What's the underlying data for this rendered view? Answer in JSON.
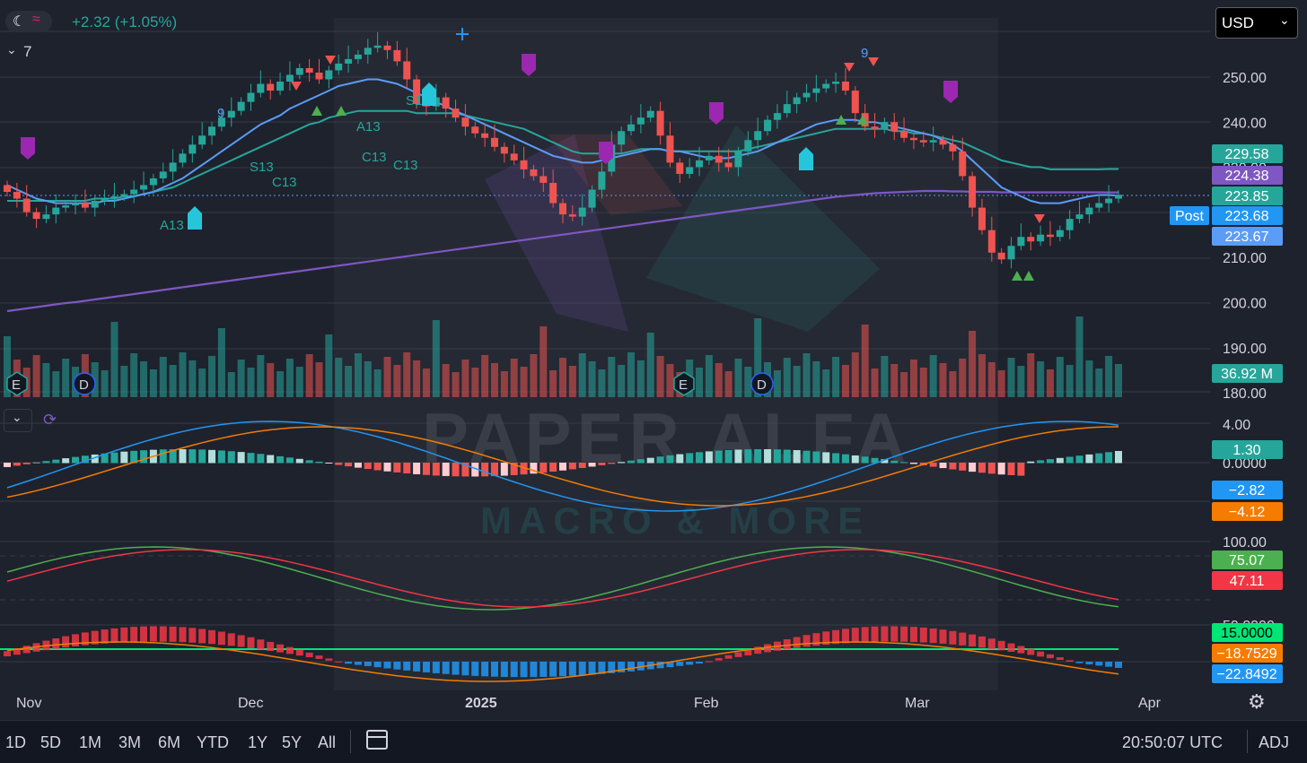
{
  "header": {
    "change_text": "+2.32 (+1.05%)",
    "collapse_count": "7"
  },
  "currency": {
    "selected": "USD"
  },
  "watermark": {
    "line1": "PAPER ALFA",
    "line2": "MACRO & MORE"
  },
  "colors": {
    "background": "#1e222d",
    "up": "#26a69a",
    "down": "#ef5350",
    "ma_fast": "#5b9cf6",
    "ma_slow": "#26a69a",
    "ma_200": "#7e57c2",
    "macd": "#2196f3",
    "signal": "#f57c00",
    "stoch_k": "#4caf50",
    "stoch_d": "#f23645"
  },
  "chart_data": [
    {
      "type": "candlestick",
      "x_ticks": [
        "Nov",
        "Dec",
        "2025",
        "Feb",
        "Mar",
        "Apr"
      ],
      "y_ticks": [
        "250.00",
        "240.00",
        "230.00",
        "220.00",
        "210.00",
        "200.00",
        "190.00",
        "180.00"
      ],
      "ylim": [
        178,
        258
      ],
      "price_badges": [
        {
          "label": "229.58",
          "color": "#26a69a"
        },
        {
          "label": "224.38",
          "color": "#7e57c2"
        },
        {
          "label": "223.85",
          "color": "#26a69a"
        },
        {
          "label": "223.68",
          "color": "#2196f3",
          "tag": "Post"
        },
        {
          "label": "223.67",
          "color": "#5b9cf6"
        }
      ],
      "volume_badge": "36.92 M",
      "event_markers": [
        "E",
        "D",
        "E",
        "D"
      ],
      "sequence_labels": [
        "9",
        "9",
        "A13",
        "S13",
        "C13",
        "C13",
        "C13",
        "S13",
        "A13"
      ],
      "close": [
        224.5,
        223.0,
        220.0,
        218.5,
        219.5,
        221.0,
        221.5,
        222.0,
        221.0,
        222.5,
        223.0,
        223.5,
        224.0,
        225.0,
        226.0,
        227.5,
        229.0,
        231.0,
        233.0,
        235.0,
        237.0,
        239.0,
        241.0,
        242.5,
        244.5,
        246.5,
        248.5,
        247.0,
        249.0,
        250.5,
        252.0,
        251.0,
        249.5,
        251.5,
        253.0,
        254.0,
        255.0,
        256.5,
        257.0,
        256.0,
        253.5,
        249.5,
        244.0,
        243.5,
        245.5,
        243.0,
        241.0,
        239.0,
        237.5,
        236.5,
        234.5,
        233.0,
        231.5,
        229.5,
        228.0,
        226.5,
        222.0,
        219.5,
        219.0,
        221.0,
        225.0,
        229.0,
        235.0,
        238.0,
        239.5,
        241.0,
        242.5,
        237.0,
        231.0,
        228.5,
        230.0,
        231.5,
        232.5,
        231.0,
        230.0,
        233.5,
        236.0,
        238.0,
        240.5,
        242.0,
        244.0,
        245.5,
        246.5,
        247.5,
        248.5,
        249.0,
        247.0,
        242.0,
        239.0,
        238.5,
        240.0,
        238.0,
        236.5,
        236.0,
        235.5,
        236.0,
        235.0,
        233.5,
        228.0,
        221.0,
        216.0,
        211.0,
        209.5,
        212.5,
        214.5,
        213.5,
        215.0,
        214.5,
        216.0,
        218.5,
        219.5,
        221.0,
        222.0,
        223.0,
        223.85
      ],
      "ma_fast": [
        226.0,
        225.0,
        224.0,
        223.0,
        222.5,
        222.0,
        222.0,
        222.0,
        222.0,
        222.0,
        222.5,
        222.5,
        223.0,
        223.5,
        224.0,
        224.5,
        225.5,
        226.5,
        227.5,
        229.0,
        230.5,
        232.0,
        233.5,
        235.0,
        236.5,
        238.0,
        239.5,
        240.5,
        241.5,
        243.0,
        244.0,
        245.0,
        246.0,
        247.0,
        248.0,
        248.5,
        249.0,
        249.5,
        249.5,
        249.0,
        248.5,
        247.5,
        246.5,
        245.5,
        244.5,
        243.5,
        242.5,
        241.5,
        240.5,
        239.5,
        238.5,
        237.5,
        236.5,
        235.5,
        234.5,
        233.5,
        232.5,
        232.0,
        231.5,
        231.0,
        231.0,
        231.5,
        232.0,
        232.5,
        233.0,
        233.5,
        234.0,
        234.0,
        233.5,
        233.5,
        233.0,
        232.5,
        232.0,
        232.0,
        232.0,
        232.5,
        233.0,
        233.5,
        234.5,
        235.5,
        236.5,
        237.5,
        238.5,
        239.5,
        240.0,
        240.5,
        240.5,
        240.5,
        240.0,
        240.0,
        239.5,
        239.0,
        238.5,
        238.0,
        237.5,
        237.0,
        236.0,
        235.0,
        233.5,
        231.5,
        229.5,
        227.5,
        225.5,
        224.5,
        223.5,
        222.5,
        222.0,
        222.0,
        222.0,
        222.5,
        223.0,
        223.5,
        223.8,
        223.8,
        223.67
      ],
      "ma_slow": [
        222.5,
        222.5,
        222.5,
        222.5,
        222.5,
        222.5,
        222.5,
        222.5,
        222.5,
        223.0,
        223.0,
        223.0,
        223.5,
        223.5,
        224.0,
        224.5,
        225.0,
        225.5,
        226.5,
        227.5,
        228.5,
        229.5,
        230.5,
        231.5,
        232.5,
        233.5,
        234.5,
        235.5,
        236.5,
        237.5,
        238.5,
        239.5,
        240.0,
        241.0,
        241.5,
        242.0,
        242.5,
        242.5,
        242.5,
        242.5,
        242.5,
        242.5,
        242.0,
        242.0,
        242.0,
        242.0,
        242.0,
        241.5,
        241.0,
        240.5,
        240.0,
        239.5,
        239.0,
        238.5,
        237.5,
        236.5,
        235.5,
        234.5,
        233.5,
        233.0,
        233.0,
        233.0,
        233.0,
        233.0,
        233.5,
        234.0,
        234.0,
        234.0,
        233.5,
        233.5,
        233.5,
        233.5,
        233.5,
        233.5,
        233.5,
        233.5,
        234.0,
        234.5,
        235.0,
        235.5,
        236.0,
        236.5,
        237.0,
        237.5,
        238.0,
        238.5,
        238.5,
        238.5,
        238.5,
        238.5,
        238.5,
        238.0,
        238.0,
        237.5,
        237.5,
        237.0,
        236.5,
        236.0,
        235.5,
        234.5,
        233.5,
        232.5,
        231.5,
        231.0,
        230.5,
        230.0,
        230.0,
        229.5,
        229.5,
        229.5,
        229.5,
        229.5,
        229.5,
        229.58,
        229.58
      ],
      "ma_200": [
        198.0,
        198.3,
        198.6,
        198.9,
        199.2,
        199.5,
        199.8,
        200.0,
        200.3,
        200.6,
        200.9,
        201.2,
        201.5,
        201.8,
        202.1,
        202.4,
        202.7,
        203.0,
        203.3,
        203.6,
        203.9,
        204.2,
        204.5,
        204.8,
        205.1,
        205.4,
        205.7,
        206.0,
        206.3,
        206.6,
        206.9,
        207.2,
        207.5,
        207.8,
        208.1,
        208.4,
        208.7,
        209.0,
        209.3,
        209.6,
        209.9,
        210.2,
        210.5,
        210.8,
        211.1,
        211.4,
        211.7,
        212.0,
        212.3,
        212.6,
        212.9,
        213.2,
        213.5,
        213.8,
        214.1,
        214.4,
        214.7,
        215.0,
        215.3,
        215.6,
        215.9,
        216.2,
        216.5,
        216.8,
        217.1,
        217.4,
        217.7,
        218.0,
        218.3,
        218.6,
        218.9,
        219.2,
        219.5,
        219.8,
        220.1,
        220.4,
        220.7,
        221.0,
        221.3,
        221.6,
        221.9,
        222.2,
        222.5,
        222.8,
        223.1,
        223.4,
        223.6,
        223.8,
        224.0,
        224.2,
        224.3,
        224.4,
        224.5,
        224.6,
        224.7,
        224.7,
        224.7,
        224.6,
        224.6,
        224.5,
        224.5,
        224.5,
        224.4,
        224.4,
        224.4,
        224.4,
        224.4,
        224.4,
        224.4,
        224.4,
        224.4,
        224.4,
        224.4,
        224.38,
        224.38
      ]
    },
    {
      "type": "macd",
      "y_ticks": [
        "4.00",
        "0.0000"
      ],
      "ylim": [
        -10,
        6
      ],
      "badges": [
        {
          "label": "1.30",
          "color": "#26a69a"
        },
        {
          "label": "−2.82",
          "color": "#2196f3"
        },
        {
          "label": "−4.12",
          "color": "#f57c00"
        }
      ]
    },
    {
      "type": "stochastic",
      "y_ticks": [
        "100.00"
      ],
      "ylim": [
        0,
        100
      ],
      "badges": [
        {
          "label": "75.07",
          "color": "#4caf50"
        },
        {
          "label": "47.11",
          "color": "#f23645"
        }
      ]
    },
    {
      "type": "oscillator",
      "y_ticks": [
        "50.0000"
      ],
      "badges": [
        {
          "label": "15.0000",
          "color": "#00e676",
          "text_color": "#000000"
        },
        {
          "label": "−18.7529",
          "color": "#f57c00"
        },
        {
          "label": "−22.8492",
          "color": "#2196f3"
        }
      ]
    }
  ],
  "toolbar": {
    "ranges": [
      "1D",
      "5D",
      "1M",
      "3M",
      "6M",
      "YTD",
      "1Y",
      "5Y",
      "All"
    ],
    "time": "20:50:07 UTC",
    "adj": "ADJ"
  }
}
